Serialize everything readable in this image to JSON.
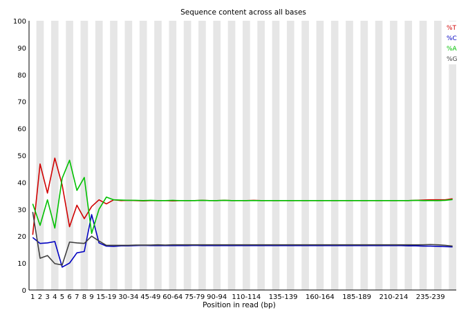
{
  "chart_data": {
    "type": "line",
    "title": "Sequence content across all bases",
    "xlabel": "Position in read (bp)",
    "ylabel": "",
    "ylim": [
      0,
      100
    ],
    "y_ticks": [
      0,
      10,
      20,
      30,
      40,
      50,
      60,
      70,
      80,
      90,
      100
    ],
    "grid": "alternating vertical bands",
    "legend_position": "top-right",
    "categories": [
      "1",
      "2",
      "3",
      "4",
      "5",
      "6",
      "7",
      "8",
      "9",
      "10-14",
      "15-19",
      "20-24",
      "25-29",
      "30-34",
      "35-39",
      "40-44",
      "45-49",
      "50-54",
      "55-59",
      "60-64",
      "65-69",
      "70-74",
      "75-79",
      "80-84",
      "85-89",
      "90-94",
      "95-99",
      "100-104",
      "105-109",
      "110-114",
      "115-119",
      "120-124",
      "125-129",
      "130-134",
      "135-139",
      "140-144",
      "145-149",
      "150-154",
      "155-159",
      "160-164",
      "165-169",
      "170-174",
      "175-179",
      "180-184",
      "185-189",
      "190-194",
      "195-199",
      "200-204",
      "205-209",
      "210-214",
      "215-219",
      "220-224",
      "225-229",
      "230-234",
      "235-239",
      "240-244",
      "245-249",
      "250-251"
    ],
    "tick_labels": [
      "1",
      "2",
      "3",
      "4",
      "5",
      "6",
      "7",
      "8",
      "9",
      "15-19",
      "30-34",
      "45-49",
      "60-64",
      "75-79",
      "90-94",
      "110-114",
      "135-139",
      "160-164",
      "185-189",
      "210-214",
      "235-239"
    ],
    "series": [
      {
        "name": "%T",
        "color": "#d00000",
        "values": [
          20.5,
          46.8,
          36.0,
          49.0,
          39.0,
          23.5,
          31.5,
          26.5,
          31.0,
          33.5,
          32.0,
          33.5,
          33.2,
          33.3,
          33.2,
          33.1,
          33.2,
          33.2,
          33.2,
          33.1,
          33.2,
          33.2,
          33.2,
          33.3,
          33.2,
          33.2,
          33.3,
          33.2,
          33.2,
          33.2,
          33.3,
          33.2,
          33.2,
          33.2,
          33.2,
          33.2,
          33.2,
          33.2,
          33.2,
          33.2,
          33.2,
          33.2,
          33.2,
          33.2,
          33.2,
          33.2,
          33.2,
          33.2,
          33.2,
          33.2,
          33.2,
          33.2,
          33.3,
          33.4,
          33.5,
          33.5,
          33.5,
          33.9
        ]
      },
      {
        "name": "%C",
        "color": "#0000c0",
        "values": [
          19.5,
          17.3,
          17.5,
          18.0,
          8.5,
          10.0,
          13.8,
          14.3,
          28.0,
          17.5,
          16.3,
          16.2,
          16.4,
          16.4,
          16.5,
          16.6,
          16.5,
          16.5,
          16.5,
          16.5,
          16.5,
          16.5,
          16.6,
          16.5,
          16.5,
          16.5,
          16.5,
          16.5,
          16.5,
          16.5,
          16.5,
          16.5,
          16.5,
          16.5,
          16.5,
          16.5,
          16.5,
          16.5,
          16.5,
          16.5,
          16.5,
          16.5,
          16.5,
          16.5,
          16.5,
          16.5,
          16.5,
          16.5,
          16.5,
          16.5,
          16.5,
          16.4,
          16.4,
          16.3,
          16.3,
          16.2,
          16.1,
          16.0
        ]
      },
      {
        "name": "%A",
        "color": "#00c000",
        "values": [
          32.0,
          24.0,
          33.5,
          23.0,
          41.5,
          48.2,
          37.0,
          41.8,
          21.0,
          30.0,
          34.5,
          33.5,
          33.4,
          33.3,
          33.3,
          33.2,
          33.3,
          33.2,
          33.2,
          33.3,
          33.2,
          33.2,
          33.2,
          33.3,
          33.2,
          33.2,
          33.3,
          33.2,
          33.2,
          33.2,
          33.2,
          33.2,
          33.2,
          33.2,
          33.2,
          33.2,
          33.2,
          33.2,
          33.2,
          33.2,
          33.2,
          33.2,
          33.2,
          33.2,
          33.2,
          33.2,
          33.2,
          33.2,
          33.2,
          33.2,
          33.2,
          33.2,
          33.3,
          33.2,
          33.2,
          33.2,
          33.3,
          33.6
        ]
      },
      {
        "name": "%G",
        "color": "#404040",
        "values": [
          29.0,
          11.8,
          12.8,
          9.8,
          9.3,
          17.8,
          17.5,
          17.3,
          20.0,
          18.2,
          16.6,
          16.6,
          16.6,
          16.6,
          16.7,
          16.7,
          16.7,
          16.8,
          16.7,
          16.8,
          16.8,
          16.8,
          16.8,
          16.8,
          16.8,
          16.8,
          16.8,
          16.8,
          16.8,
          16.8,
          16.8,
          16.8,
          16.8,
          16.8,
          16.8,
          16.8,
          16.8,
          16.8,
          16.8,
          16.8,
          16.8,
          16.8,
          16.8,
          16.8,
          16.8,
          16.8,
          16.8,
          16.8,
          16.8,
          16.8,
          16.8,
          16.8,
          16.8,
          16.8,
          16.9,
          16.8,
          16.6,
          16.3
        ]
      }
    ]
  }
}
